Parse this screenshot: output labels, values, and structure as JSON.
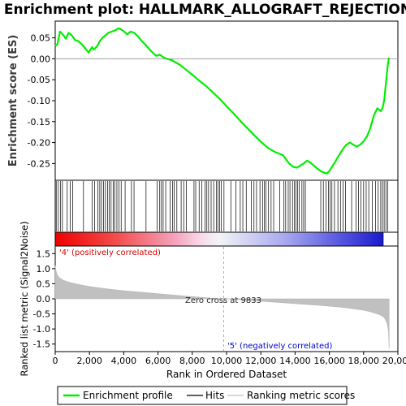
{
  "chart_data": {
    "type": "line",
    "title": "Enrichment plot: HALLMARK_ALLOGRAFT_REJECTION",
    "x_range": [
      0,
      20000
    ],
    "x_ticks": [
      "0",
      "2,000",
      "4,000",
      "6,000",
      "8,000",
      "10,000",
      "12,000",
      "14,000",
      "16,000",
      "18,000",
      "20,000"
    ],
    "x_tick_values": [
      0,
      2000,
      4000,
      6000,
      8000,
      10000,
      12000,
      14000,
      16000,
      18000,
      20000
    ],
    "xlabel": "Rank in Ordered Dataset",
    "top_panel": {
      "ylabel": "Enrichment score (ES)",
      "ylim": [
        -0.29,
        0.09
      ],
      "y_ticks": [
        "0.05",
        "0.00",
        "-0.05",
        "-0.10",
        "-0.15",
        "-0.20",
        "-0.25"
      ],
      "y_tick_values": [
        0.05,
        0.0,
        -0.05,
        -0.1,
        -0.15,
        -0.2,
        -0.25
      ],
      "series_name": "Enrichment profile",
      "color": "#00ee00",
      "x": [
        0,
        130,
        280,
        450,
        620,
        780,
        950,
        1150,
        1350,
        1550,
        1750,
        1950,
        2150,
        2250,
        2450,
        2600,
        2750,
        2900,
        3100,
        3300,
        3500,
        3700,
        3850,
        4000,
        4200,
        4400,
        4600,
        4800,
        5000,
        5300,
        5600,
        5900,
        6100,
        6300,
        6500,
        6800,
        7000,
        7300,
        7600,
        8000,
        8400,
        8800,
        9200,
        9600,
        10000,
        10400,
        10800,
        11200,
        11600,
        12000,
        12400,
        12800,
        13100,
        13300,
        13500,
        13700,
        13900,
        14100,
        14300,
        14500,
        14700,
        14900,
        15100,
        15300,
        15500,
        15700,
        15850,
        16000,
        16200,
        16400,
        16600,
        16800,
        17000,
        17200,
        17400,
        17600,
        17800,
        18000,
        18200,
        18400,
        18600,
        18800,
        19000,
        19100,
        19200,
        19300,
        19400,
        19475
      ],
      "y": [
        0.03,
        0.035,
        0.065,
        0.058,
        0.048,
        0.062,
        0.057,
        0.045,
        0.042,
        0.035,
        0.025,
        0.015,
        0.028,
        0.022,
        0.03,
        0.042,
        0.05,
        0.055,
        0.062,
        0.065,
        0.068,
        0.073,
        0.07,
        0.066,
        0.058,
        0.065,
        0.062,
        0.055,
        0.045,
        0.032,
        0.018,
        0.007,
        0.01,
        0.004,
        0.0,
        -0.003,
        -0.008,
        -0.015,
        -0.025,
        -0.038,
        -0.052,
        -0.065,
        -0.08,
        -0.096,
        -0.113,
        -0.13,
        -0.148,
        -0.165,
        -0.182,
        -0.198,
        -0.212,
        -0.222,
        -0.227,
        -0.23,
        -0.242,
        -0.252,
        -0.258,
        -0.26,
        -0.255,
        -0.25,
        -0.243,
        -0.248,
        -0.255,
        -0.262,
        -0.268,
        -0.272,
        -0.274,
        -0.268,
        -0.255,
        -0.242,
        -0.228,
        -0.215,
        -0.205,
        -0.2,
        -0.205,
        -0.21,
        -0.205,
        -0.197,
        -0.185,
        -0.165,
        -0.135,
        -0.118,
        -0.125,
        -0.118,
        -0.1,
        -0.06,
        -0.02,
        0.003
      ]
    },
    "hits": {
      "series_name": "Hits",
      "positions": [
        60,
        180,
        300,
        420,
        700,
        880,
        1020,
        1650,
        2150,
        2300,
        2480,
        2600,
        2700,
        2820,
        2930,
        3050,
        3150,
        3260,
        3380,
        3470,
        3600,
        3720,
        3850,
        4080,
        4450,
        4600,
        5300,
        5950,
        6100,
        6200,
        6300,
        6450,
        6700,
        6850,
        6950,
        7100,
        7350,
        7500,
        7650,
        8100,
        8200,
        8400,
        8550,
        8750,
        8850,
        8950,
        9100,
        9250,
        9400,
        9500,
        9600,
        9700,
        9850,
        10250,
        10550,
        10800,
        10950,
        11150,
        11450,
        11600,
        11750,
        11950,
        12100,
        12200,
        12300,
        12450,
        12600,
        12750,
        13100,
        13350,
        13450,
        13600,
        13700,
        13850,
        13950,
        14050,
        14150,
        14250,
        14400,
        14500,
        14600,
        15500,
        15650,
        15800,
        15950,
        16050,
        16150,
        16300,
        16500,
        16650,
        16800,
        16950,
        17300,
        17550,
        17700,
        17850,
        18000,
        18150,
        18300,
        18500,
        18700,
        18850,
        19000,
        19100,
        19200,
        19300,
        19400
      ]
    },
    "bottom_panel": {
      "series_name": "Ranking metric scores",
      "ylabel": "Ranked list metric (Signal2Noise)",
      "ylim": [
        -1.75,
        1.75
      ],
      "y_ticks": [
        "1.5",
        "1.0",
        "0.5",
        "0.0",
        "-0.5",
        "-1.0",
        "-1.5"
      ],
      "y_tick_values": [
        1.5,
        1.0,
        0.5,
        0.0,
        -0.5,
        -1.0,
        -1.5
      ],
      "color": "#c0c0c0",
      "x": [
        0,
        40,
        100,
        200,
        350,
        500,
        700,
        1000,
        1500,
        2000,
        3000,
        4000,
        5000,
        6000,
        7000,
        7800,
        8500,
        9200,
        9833,
        10500,
        11500,
        12500,
        13500,
        14500,
        15500,
        16500,
        17000,
        17500,
        18000,
        18400,
        18800,
        19000,
        19200,
        19350,
        19450,
        19490
      ],
      "y": [
        1.1,
        0.95,
        0.82,
        0.73,
        0.66,
        0.61,
        0.57,
        0.52,
        0.46,
        0.41,
        0.33,
        0.27,
        0.22,
        0.17,
        0.12,
        0.08,
        0.05,
        0.02,
        0.0,
        -0.02,
        -0.06,
        -0.1,
        -0.14,
        -0.18,
        -0.22,
        -0.27,
        -0.3,
        -0.34,
        -0.38,
        -0.43,
        -0.5,
        -0.55,
        -0.62,
        -0.78,
        -1.05,
        -1.65
      ]
    },
    "annotations": {
      "positive": "'4' (positively correlated)",
      "negative": "'5' (negatively correlated)",
      "zero_cross": "Zero cross at 9833",
      "zero_cross_value": 9833,
      "positive_color": "#dd0000",
      "negative_color": "#0000cc"
    },
    "legend": {
      "placement": "bottom",
      "items": [
        "Enrichment profile",
        "Hits",
        "Ranking metric scores"
      ]
    }
  }
}
